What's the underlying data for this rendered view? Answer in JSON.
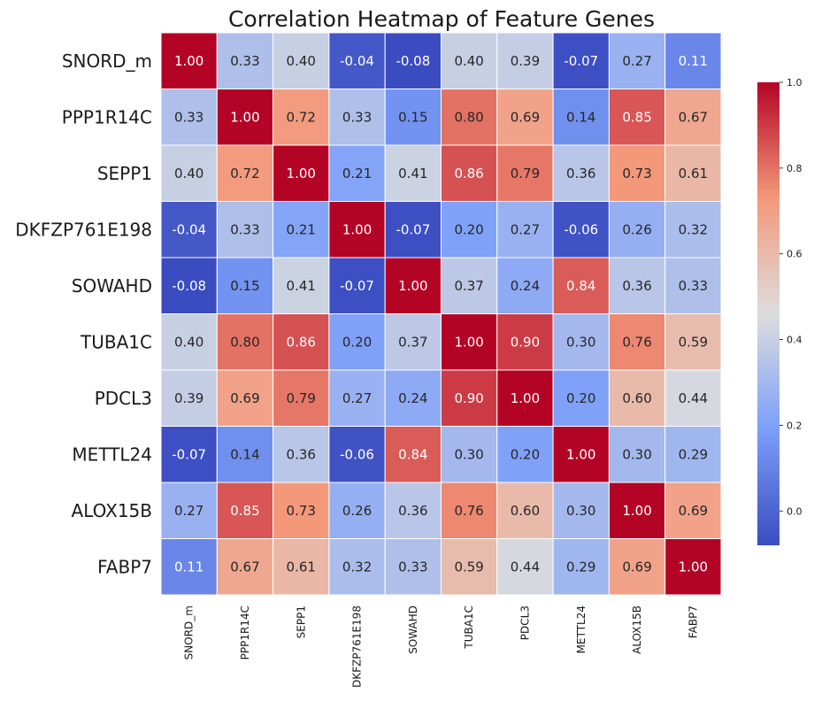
{
  "chart_data": {
    "type": "heatmap",
    "title": "Correlation Heatmap of Feature Genes",
    "row_labels": [
      "SNORD_m",
      "PPP1R14C",
      "SEPP1",
      "DKFZP761E198",
      "SOWAHD",
      "TUBA1C",
      "PDCL3",
      "METTL24",
      "ALOX15B",
      "FABP7"
    ],
    "col_labels": [
      "SNORD_m",
      "PPP1R14C",
      "SEPP1",
      "DKFZP761E198",
      "SOWAHD",
      "TUBA1C",
      "PDCL3",
      "METTL24",
      "ALOX15B",
      "FABP7"
    ],
    "values": [
      [
        1.0,
        0.33,
        0.4,
        -0.04,
        -0.08,
        0.4,
        0.39,
        -0.07,
        0.27,
        0.11
      ],
      [
        0.33,
        1.0,
        0.72,
        0.33,
        0.15,
        0.8,
        0.69,
        0.14,
        0.85,
        0.67
      ],
      [
        0.4,
        0.72,
        1.0,
        0.21,
        0.41,
        0.86,
        0.79,
        0.36,
        0.73,
        0.61
      ],
      [
        -0.04,
        0.33,
        0.21,
        1.0,
        -0.07,
        0.2,
        0.27,
        -0.06,
        0.26,
        0.32
      ],
      [
        -0.08,
        0.15,
        0.41,
        -0.07,
        1.0,
        0.37,
        0.24,
        0.84,
        0.36,
        0.33
      ],
      [
        0.4,
        0.8,
        0.86,
        0.2,
        0.37,
        1.0,
        0.9,
        0.3,
        0.76,
        0.59
      ],
      [
        0.39,
        0.69,
        0.79,
        0.27,
        0.24,
        0.9,
        1.0,
        0.2,
        0.6,
        0.44
      ],
      [
        -0.07,
        0.14,
        0.36,
        -0.06,
        0.84,
        0.3,
        0.2,
        1.0,
        0.3,
        0.29
      ],
      [
        0.27,
        0.85,
        0.73,
        0.26,
        0.36,
        0.76,
        0.6,
        0.3,
        1.0,
        0.69
      ],
      [
        0.11,
        0.67,
        0.61,
        0.32,
        0.33,
        0.59,
        0.44,
        0.29,
        0.69,
        1.0
      ]
    ],
    "colormap": "coolwarm",
    "vmin": -0.08,
    "vmax": 1.0,
    "value_format": "2 decimals",
    "colorbar": {
      "position": "right",
      "ticks": [
        "0.0",
        "0.2",
        "0.4",
        "0.6",
        "0.8",
        "1.0"
      ],
      "tick_values": [
        0.0,
        0.2,
        0.4,
        0.6,
        0.8,
        1.0
      ]
    },
    "grid": false,
    "cell_border_color": "#ffffff"
  }
}
